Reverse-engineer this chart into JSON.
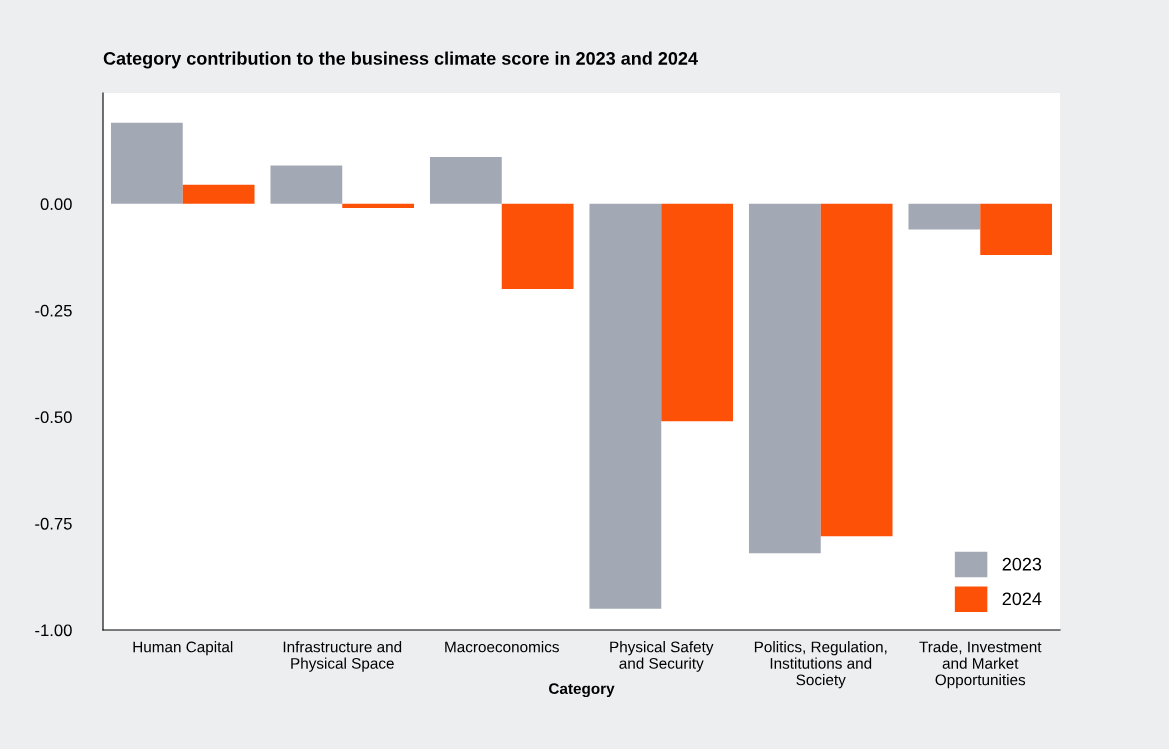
{
  "chart_data": {
    "type": "bar",
    "title": "Category contribution to the business climate score in 2023 and 2024",
    "xlabel": "Category",
    "categories": [
      "Human Capital",
      "Infrastructure and\nPhysical Space",
      "Macroeconomics",
      "Physical Safety\nand Security",
      "Politics, Regulation,\nInstitutions and\nSociety",
      "Trade, Investment\nand Market\nOpportunities"
    ],
    "series": [
      {
        "name": "2023",
        "color": "#a3a9b4",
        "values": [
          0.19,
          0.09,
          0.11,
          -0.95,
          -0.82,
          -0.06
        ]
      },
      {
        "name": "2024",
        "color": "#fe5108",
        "values": [
          0.045,
          -0.01,
          -0.2,
          -0.51,
          -0.78,
          -0.12
        ]
      }
    ],
    "ylim": [
      -1.0,
      0.26
    ],
    "yticks": [
      {
        "value": 0,
        "label": "0.00"
      },
      {
        "value": -0.25,
        "label": "-0.25"
      },
      {
        "value": -0.5,
        "label": "-0.50"
      },
      {
        "value": -0.75,
        "label": "-0.75"
      },
      {
        "value": -1,
        "label": "-1.00"
      }
    ],
    "legend": "bottom right",
    "grid": false
  }
}
